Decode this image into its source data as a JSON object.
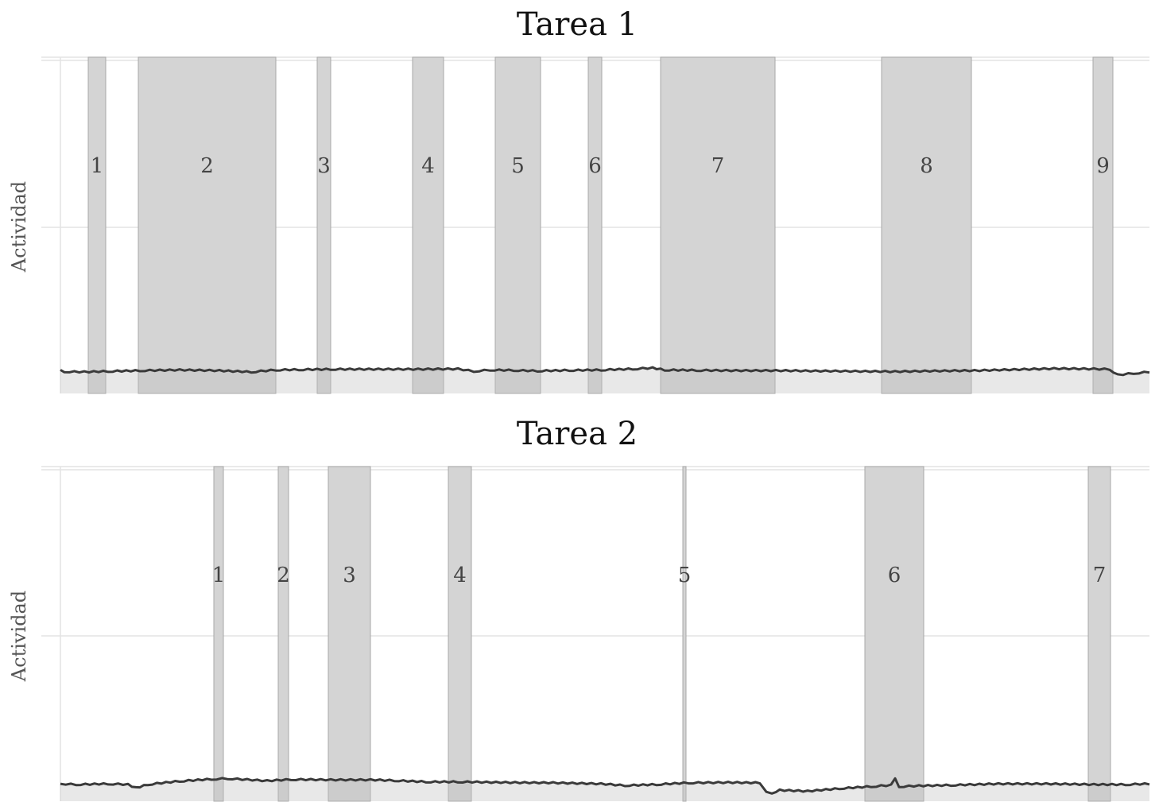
{
  "chart_data": [
    {
      "type": "line",
      "title": "Tarea 1",
      "ylabel": "Actividad",
      "xlim": [
        0,
        1370
      ],
      "ylim": [
        0,
        1
      ],
      "grid": true,
      "segments": [
        {
          "label": "1",
          "start": 35,
          "end": 57
        },
        {
          "label": "2",
          "start": 98,
          "end": 271
        },
        {
          "label": "3",
          "start": 323,
          "end": 340
        },
        {
          "label": "4",
          "start": 443,
          "end": 482
        },
        {
          "label": "5",
          "start": 547,
          "end": 604
        },
        {
          "label": "6",
          "start": 664,
          "end": 681
        },
        {
          "label": "7",
          "start": 755,
          "end": 899
        },
        {
          "label": "8",
          "start": 1033,
          "end": 1146
        },
        {
          "label": "9",
          "start": 1299,
          "end": 1324
        }
      ],
      "series": [
        {
          "x": [
            0,
            5,
            30,
            60,
            100,
            150,
            200,
            240,
            271,
            300,
            340,
            400,
            450,
            500,
            520,
            540,
            570,
            600,
            640,
            680,
            720,
            745,
            760,
            800,
            850,
            900,
            950,
            1000,
            1050,
            1100,
            1150,
            1200,
            1250,
            1300,
            1320,
            1330,
            1350,
            1370
          ],
          "y": [
            0.07,
            0.065,
            0.064,
            0.066,
            0.068,
            0.07,
            0.068,
            0.064,
            0.07,
            0.071,
            0.072,
            0.072,
            0.072,
            0.073,
            0.066,
            0.07,
            0.069,
            0.067,
            0.069,
            0.07,
            0.073,
            0.076,
            0.07,
            0.069,
            0.068,
            0.068,
            0.067,
            0.066,
            0.065,
            0.067,
            0.068,
            0.071,
            0.074,
            0.073,
            0.072,
            0.055,
            0.06,
            0.064
          ]
        }
      ]
    },
    {
      "type": "line",
      "title": "Tarea 2",
      "ylabel": "Actividad",
      "xlim": [
        0,
        1370
      ],
      "ylim": [
        0,
        1
      ],
      "grid": true,
      "segments": [
        {
          "label": "1",
          "start": 193,
          "end": 205
        },
        {
          "label": "2",
          "start": 274,
          "end": 287
        },
        {
          "label": "3",
          "start": 337,
          "end": 390
        },
        {
          "label": "4",
          "start": 488,
          "end": 517
        },
        {
          "label": "5",
          "start": 783,
          "end": 787
        },
        {
          "label": "6",
          "start": 1012,
          "end": 1086
        },
        {
          "label": "7",
          "start": 1293,
          "end": 1321
        }
      ],
      "series": [
        {
          "x": [
            0,
            20,
            60,
            85,
            95,
            110,
            150,
            190,
            210,
            260,
            290,
            340,
            390,
            420,
            460,
            500,
            560,
            620,
            680,
            710,
            750,
            790,
            840,
            880,
            888,
            895,
            905,
            940,
            980,
            1020,
            1045,
            1050,
            1055,
            1080,
            1120,
            1180,
            1240,
            1300,
            1340,
            1370
          ],
          "y": [
            0.052,
            0.05,
            0.052,
            0.05,
            0.04,
            0.05,
            0.06,
            0.066,
            0.068,
            0.061,
            0.065,
            0.064,
            0.064,
            0.062,
            0.058,
            0.058,
            0.056,
            0.055,
            0.052,
            0.047,
            0.05,
            0.055,
            0.056,
            0.055,
            0.03,
            0.025,
            0.033,
            0.03,
            0.038,
            0.044,
            0.048,
            0.07,
            0.044,
            0.046,
            0.048,
            0.052,
            0.052,
            0.05,
            0.05,
            0.052
          ]
        }
      ]
    }
  ]
}
